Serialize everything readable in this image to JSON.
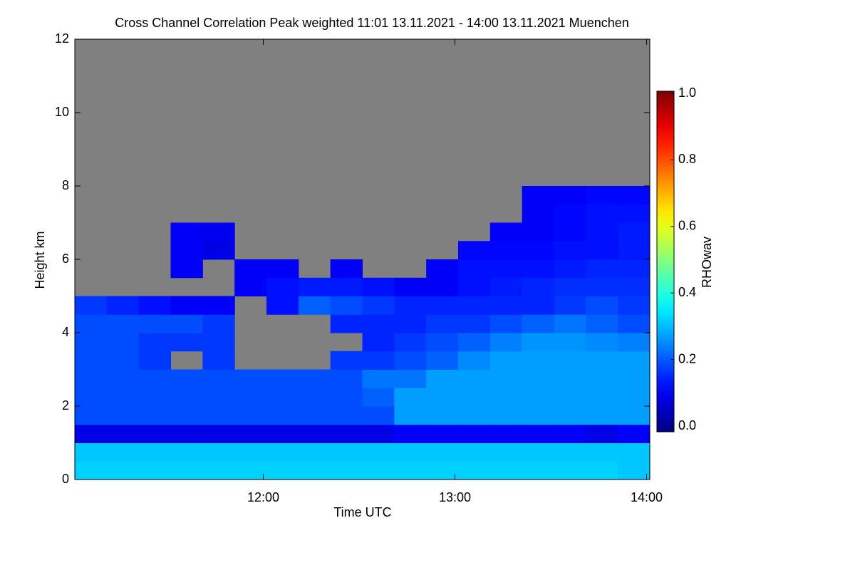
{
  "chart_data": {
    "type": "heatmap",
    "title": "Cross Channel Correlation Peak weighted   11:01 13.11.2021 - 14:00 13.11.2021 Muenchen",
    "x_label": "Time UTC",
    "y_label": "Height km",
    "colorbar_label": "RHOwav",
    "colormap": "jet",
    "nodata_color": "#808080",
    "xlim": [
      "11:01",
      "14:01"
    ],
    "xticks": [
      "12:00",
      "13:00",
      "14:00"
    ],
    "ylim": [
      0,
      12
    ],
    "yticks": [
      0,
      2,
      4,
      6,
      8,
      10,
      12
    ],
    "clim": [
      0,
      1
    ],
    "cticks": [
      {
        "value": 0,
        "label": "0.0"
      },
      {
        "value": 0.2,
        "label": "0.2"
      },
      {
        "value": 0.4,
        "label": "0.4"
      },
      {
        "value": 0.6,
        "label": "0.6"
      },
      {
        "value": 0.8,
        "label": "0.8"
      },
      {
        "value": 1,
        "label": "1.0"
      }
    ],
    "x": [
      "11:01",
      "11:11",
      "11:21",
      "11:31",
      "11:41",
      "11:51",
      "12:01",
      "12:11",
      "12:21",
      "12:31",
      "12:41",
      "12:51",
      "13:01",
      "13:11",
      "13:21",
      "13:31",
      "13:41",
      "13:51"
    ],
    "y": [
      0,
      0.5,
      1,
      1.5,
      2,
      2.5,
      3,
      3.5,
      4,
      4.5,
      5,
      5.5,
      6,
      6.5,
      7,
      7.5
    ],
    "y_top": 8,
    "z": [
      [
        0.33,
        0.33,
        0.33,
        0.33,
        0.33,
        0.33,
        0.33,
        0.33,
        0.33,
        0.33,
        0.33,
        0.33,
        0.33,
        0.33,
        0.33,
        0.33,
        0.33,
        0.32
      ],
      [
        0.32,
        0.32,
        0.32,
        0.32,
        0.32,
        0.32,
        0.32,
        0.32,
        0.32,
        0.32,
        0.32,
        0.32,
        0.32,
        0.32,
        0.32,
        0.32,
        0.32,
        0.32
      ],
      [
        0.1,
        0.1,
        0.1,
        0.1,
        0.1,
        0.1,
        0.1,
        0.1,
        0.1,
        0.1,
        0.12,
        0.12,
        0.12,
        0.12,
        0.12,
        0.12,
        0.1,
        0.12
      ],
      [
        0.2,
        0.2,
        0.2,
        0.2,
        0.2,
        0.2,
        0.2,
        0.2,
        0.2,
        0.2,
        0.28,
        0.28,
        0.28,
        0.28,
        0.28,
        0.28,
        0.28,
        0.28
      ],
      [
        0.2,
        0.2,
        0.2,
        0.2,
        0.2,
        0.2,
        0.2,
        0.2,
        0.2,
        0.22,
        0.28,
        0.28,
        0.28,
        0.28,
        0.28,
        0.28,
        0.28,
        0.28
      ],
      [
        0.2,
        0.2,
        0.2,
        0.2,
        0.2,
        0.2,
        0.2,
        0.2,
        0.2,
        0.24,
        0.24,
        0.28,
        0.28,
        0.28,
        0.28,
        0.28,
        0.28,
        0.28
      ],
      [
        0.2,
        0.2,
        0.18,
        null,
        0.18,
        null,
        null,
        null,
        0.18,
        0.18,
        0.2,
        0.22,
        0.26,
        0.28,
        0.28,
        0.28,
        0.28,
        0.28
      ],
      [
        0.2,
        0.2,
        0.18,
        0.18,
        0.18,
        null,
        null,
        null,
        null,
        0.16,
        0.18,
        0.2,
        0.22,
        0.25,
        0.27,
        0.27,
        0.26,
        0.25
      ],
      [
        0.2,
        0.2,
        0.2,
        0.2,
        0.18,
        null,
        null,
        null,
        0.16,
        0.16,
        0.16,
        0.18,
        0.18,
        0.2,
        0.22,
        0.24,
        0.22,
        0.2
      ],
      [
        0.18,
        0.16,
        0.14,
        0.12,
        0.12,
        null,
        0.14,
        0.22,
        0.2,
        0.18,
        0.16,
        0.16,
        0.16,
        0.16,
        0.16,
        0.18,
        0.2,
        0.18
      ],
      [
        null,
        null,
        null,
        null,
        null,
        0.12,
        0.14,
        0.15,
        0.15,
        0.14,
        0.12,
        0.12,
        0.14,
        0.15,
        0.16,
        0.17,
        0.17,
        0.17
      ],
      [
        null,
        null,
        null,
        0.12,
        null,
        0.12,
        0.12,
        null,
        0.12,
        null,
        null,
        0.12,
        0.14,
        0.14,
        0.14,
        0.15,
        0.16,
        0.16
      ],
      [
        null,
        null,
        null,
        0.12,
        0.1,
        null,
        null,
        null,
        null,
        null,
        null,
        null,
        0.13,
        0.13,
        0.13,
        0.14,
        0.14,
        0.15
      ],
      [
        null,
        null,
        null,
        0.12,
        0.11,
        null,
        null,
        null,
        null,
        null,
        null,
        null,
        null,
        0.12,
        0.12,
        0.13,
        0.14,
        0.15
      ],
      [
        null,
        null,
        null,
        null,
        null,
        null,
        null,
        null,
        null,
        null,
        null,
        null,
        null,
        null,
        0.12,
        0.13,
        0.14,
        0.14
      ],
      [
        null,
        null,
        null,
        null,
        null,
        null,
        null,
        null,
        null,
        null,
        null,
        null,
        null,
        null,
        0.12,
        0.12,
        0.13,
        0.13
      ]
    ]
  }
}
